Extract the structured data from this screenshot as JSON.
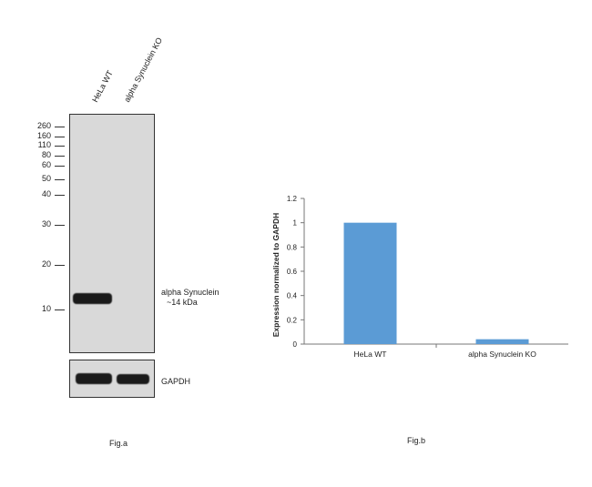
{
  "fig_a": {
    "lanes": [
      "HeLa WT",
      "alpha Synuclein KO"
    ],
    "markers": [
      "260",
      "160",
      "110",
      "80",
      "60",
      "50",
      "40",
      "30",
      "20",
      "10"
    ],
    "target_label": "alpha Synuclein",
    "target_size": "~14 kDa",
    "loading_control": "GAPDH",
    "caption": "Fig.a"
  },
  "fig_b": {
    "caption": "Fig.b"
  },
  "chart_data": {
    "type": "bar",
    "categories": [
      "HeLa WT",
      "alpha Synuclein KO"
    ],
    "values": [
      1.0,
      0.04
    ],
    "title": "",
    "xlabel": "",
    "ylabel": "Expression normalized to GAPDH",
    "ylim": [
      0,
      1.2
    ],
    "yticks": [
      "0",
      "0.2",
      "0.4",
      "0.6",
      "0.8",
      "1",
      "1.2"
    ],
    "bar_color": "#5b9bd5",
    "grid": false
  }
}
